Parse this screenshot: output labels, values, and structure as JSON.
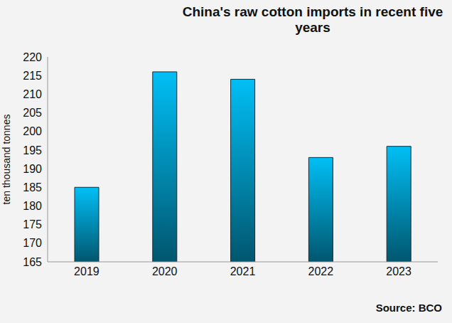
{
  "chart_data": {
    "type": "bar",
    "title": "China's raw cotton imports in recent five years",
    "y_label": "ten thousand tonnes",
    "source": "Source: BCO",
    "categories": [
      "2019",
      "2020",
      "2021",
      "2022",
      "2023"
    ],
    "values": [
      185,
      216,
      214,
      193,
      196
    ],
    "color": "#00bff5",
    "ylim": [
      165,
      220
    ],
    "yticks": [
      165,
      170,
      175,
      180,
      185,
      190,
      195,
      200,
      205,
      210,
      215,
      220
    ],
    "grid": false
  }
}
